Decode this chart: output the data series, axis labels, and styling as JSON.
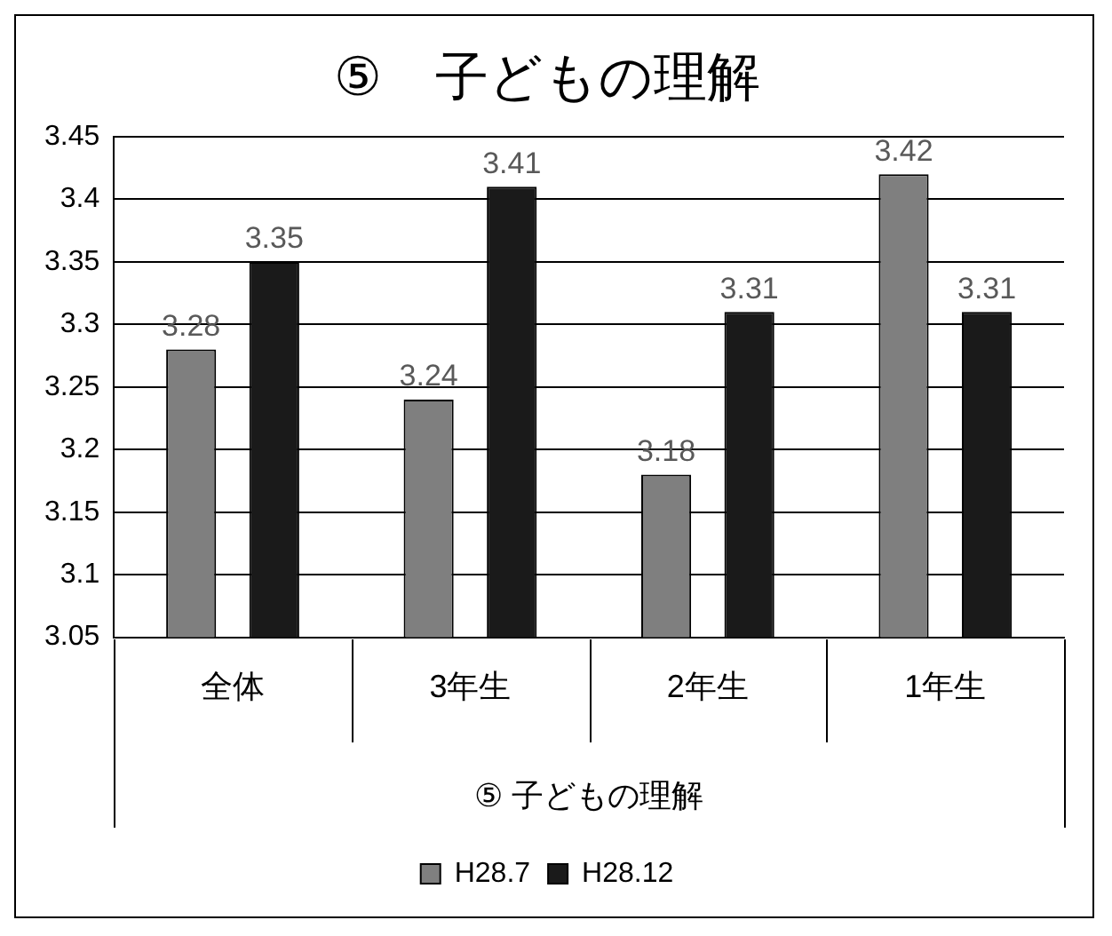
{
  "chart_data": {
    "type": "bar",
    "title": "⑤　子どもの理解",
    "xlabel": "⑤ 子どもの理解",
    "categories": [
      "全体",
      "3年生",
      "2年生",
      "1年生"
    ],
    "series": [
      {
        "name": "H28.7",
        "color": "#7f7f7f",
        "values": [
          3.28,
          3.24,
          3.18,
          3.42
        ]
      },
      {
        "name": "H28.12",
        "color": "#1a1a1a",
        "values": [
          3.35,
          3.41,
          3.31,
          3.31
        ]
      }
    ],
    "ylim": [
      3.05,
      3.45
    ],
    "yticks": [
      3.05,
      3.1,
      3.15,
      3.2,
      3.25,
      3.3,
      3.35,
      3.4,
      3.45
    ],
    "grid": "y",
    "legend": "bottom",
    "data_labels": true
  }
}
